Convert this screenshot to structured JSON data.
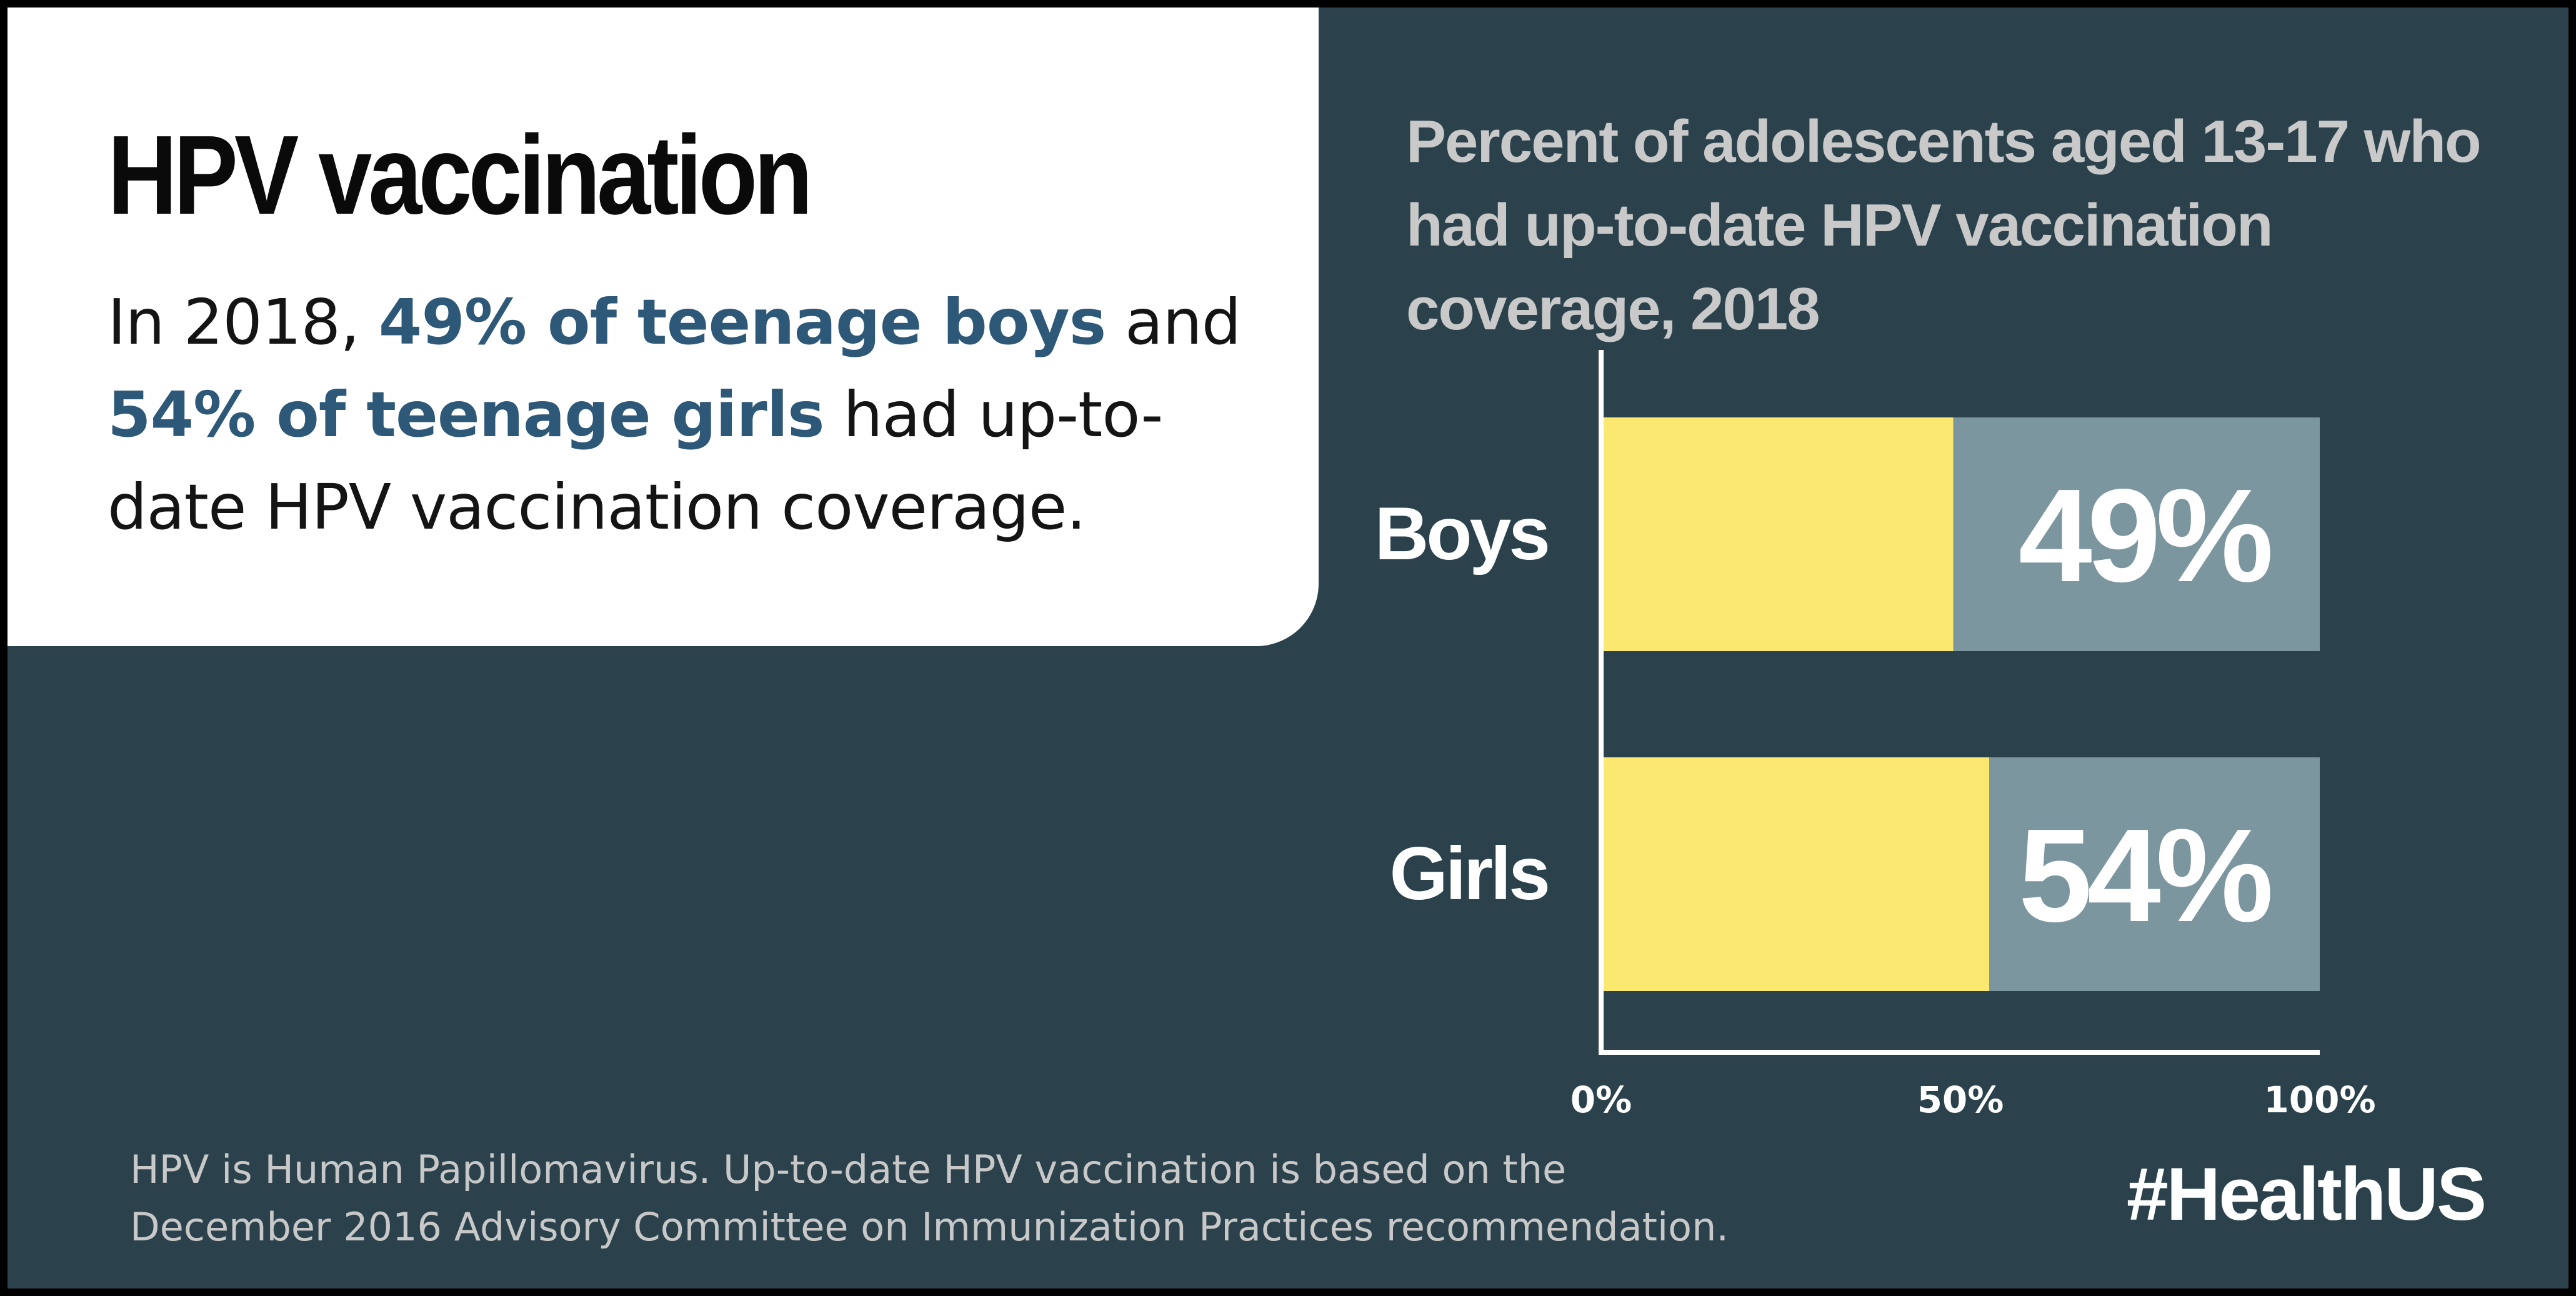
{
  "headline": {
    "title": "HPV vaccination",
    "summary_prefix": "In 2018, ",
    "summary_highlight_1": "49% of teenage boys",
    "summary_middle": " and ",
    "summary_highlight_2": "54% of teenage girls",
    "summary_suffix": " had up-to-date HPV vaccination coverage."
  },
  "footnote": "HPV is Human Papillomavirus. Up-to-date HPV vaccination is based on the December 2016 Advisory Committee on Immunization Practices recommendation.",
  "hashtag": "#HealthUS",
  "colors": {
    "background": "#2b424d",
    "bar_fill": "#fbe870",
    "bar_track": "#7b969f",
    "highlight_text": "#2e5877"
  },
  "chart_data": {
    "type": "bar",
    "orientation": "horizontal",
    "title": "Percent of adolescents aged 13-17 who had up-to-date HPV vaccination coverage, 2018",
    "categories": [
      "Boys",
      "Girls"
    ],
    "values": [
      49,
      54
    ],
    "data_labels": [
      "49%",
      "54%"
    ],
    "xlim": [
      0,
      100
    ],
    "x_ticks": [
      0,
      50,
      100
    ],
    "x_tick_labels": [
      "0%",
      "50%",
      "100%"
    ],
    "grid": false,
    "legend": "none"
  }
}
